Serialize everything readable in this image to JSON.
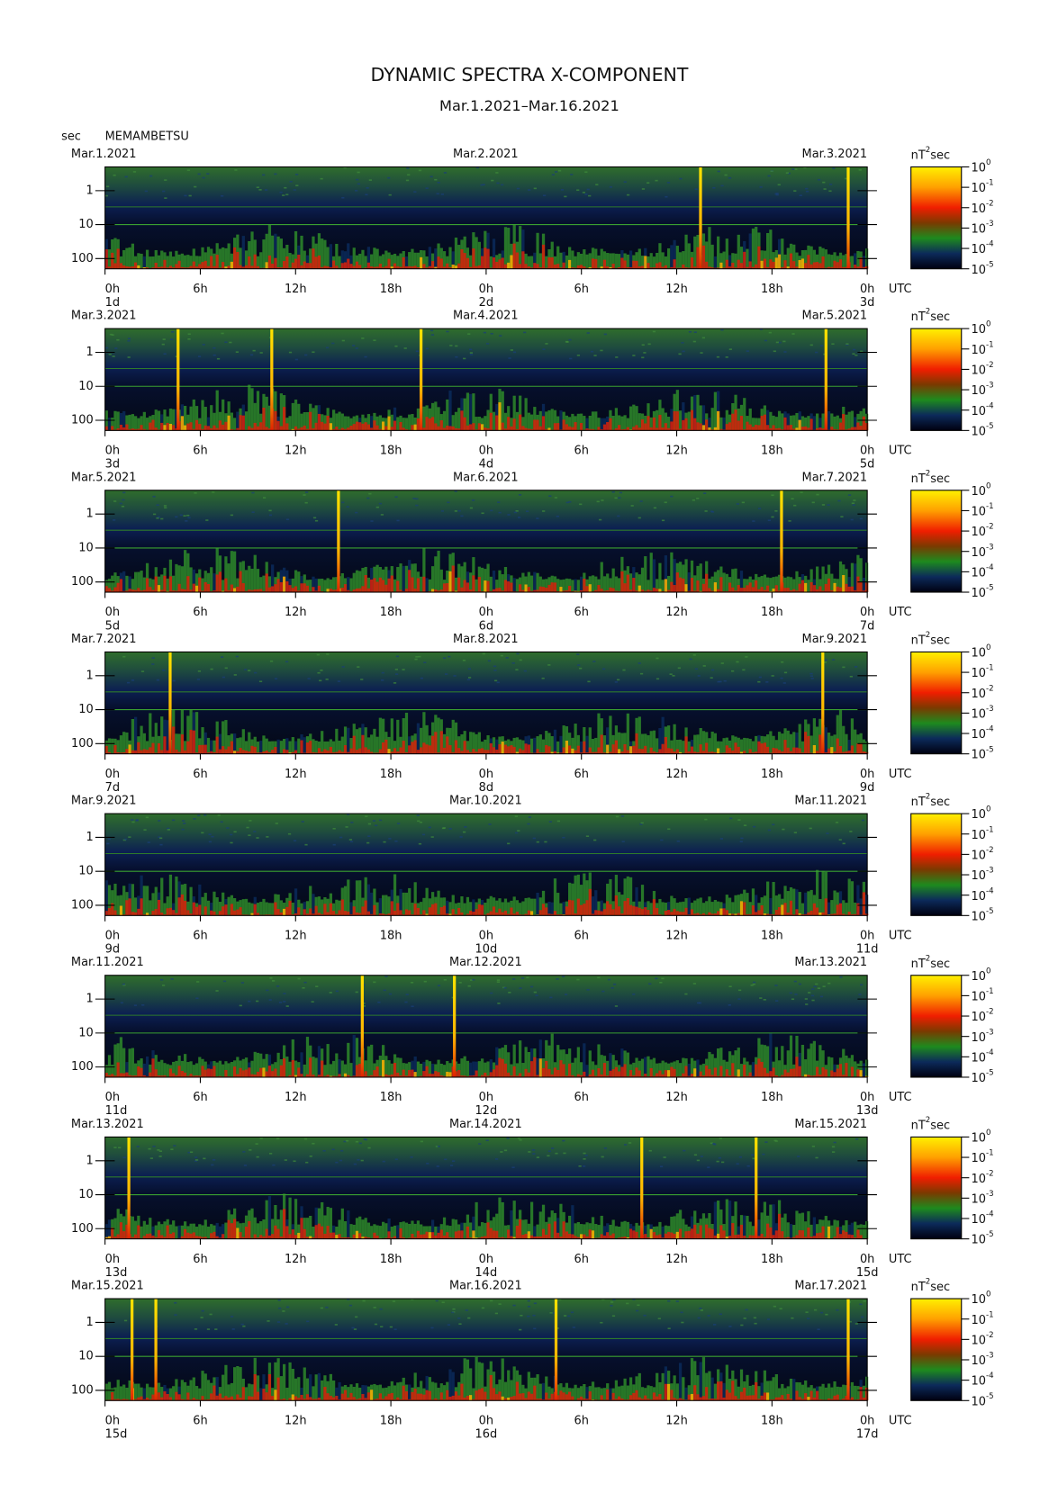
{
  "title": "DYNAMIC SPECTRA X-COMPONENT",
  "subtitle": "Mar.1.2021–Mar.16.2021",
  "y_unit": "sec",
  "station": "MEMAMBETSU",
  "time_zone": "UTC",
  "colorbar_unit": {
    "base": "nT",
    "exponent": "2",
    "suffix": "sec"
  },
  "colorbar_ticks": [
    {
      "base": "10",
      "exponent": "0"
    },
    {
      "base": "10",
      "exponent": "-1"
    },
    {
      "base": "10",
      "exponent": "-2"
    },
    {
      "base": "10",
      "exponent": "-3"
    },
    {
      "base": "10",
      "exponent": "-4"
    },
    {
      "base": "10",
      "exponent": "-5"
    }
  ],
  "chart_data": [
    {
      "type": "spectrogram",
      "dates": [
        "Mar.1.2021",
        "Mar.2.2021",
        "Mar.3.2021"
      ],
      "days": [
        {
          "value": 0,
          "label": "1d"
        },
        {
          "value": 24,
          "label": "2d"
        },
        {
          "value": 48,
          "label": "3d"
        }
      ],
      "events": [
        37.5,
        46.8
      ]
    },
    {
      "type": "spectrogram",
      "dates": [
        "Mar.3.2021",
        "Mar.4.2021",
        "Mar.5.2021"
      ],
      "days": [
        {
          "value": 0,
          "label": "3d"
        },
        {
          "value": 24,
          "label": "4d"
        },
        {
          "value": 48,
          "label": "5d"
        }
      ],
      "events": [
        4.6,
        10.5,
        19.9,
        45.4
      ]
    },
    {
      "type": "spectrogram",
      "dates": [
        "Mar.5.2021",
        "Mar.6.2021",
        "Mar.7.2021"
      ],
      "days": [
        {
          "value": 0,
          "label": "5d"
        },
        {
          "value": 24,
          "label": "6d"
        },
        {
          "value": 48,
          "label": "7d"
        }
      ],
      "events": [
        14.7,
        42.6
      ]
    },
    {
      "type": "spectrogram",
      "dates": [
        "Mar.7.2021",
        "Mar.8.2021",
        "Mar.9.2021"
      ],
      "days": [
        {
          "value": 0,
          "label": "7d"
        },
        {
          "value": 24,
          "label": "8d"
        },
        {
          "value": 48,
          "label": "9d"
        }
      ],
      "events": [
        4.1,
        45.2
      ]
    },
    {
      "type": "spectrogram",
      "dates": [
        "Mar.9.2021",
        "Mar.10.2021",
        "Mar.11.2021"
      ],
      "days": [
        {
          "value": 0,
          "label": "9d"
        },
        {
          "value": 24,
          "label": "10d"
        },
        {
          "value": 48,
          "label": "11d"
        }
      ],
      "events": []
    },
    {
      "type": "spectrogram",
      "dates": [
        "Mar.11.2021",
        "Mar.12.2021",
        "Mar.13.2021"
      ],
      "days": [
        {
          "value": 0,
          "label": "11d"
        },
        {
          "value": 24,
          "label": "12d"
        },
        {
          "value": 48,
          "label": "13d"
        }
      ],
      "events": [
        16.2,
        22.0
      ]
    },
    {
      "type": "spectrogram",
      "dates": [
        "Mar.13.2021",
        "Mar.14.2021",
        "Mar.15.2021"
      ],
      "days": [
        {
          "value": 0,
          "label": "13d"
        },
        {
          "value": 24,
          "label": "14d"
        },
        {
          "value": 48,
          "label": "15d"
        }
      ],
      "events": [
        1.5,
        33.8,
        41.0
      ]
    },
    {
      "type": "spectrogram",
      "dates": [
        "Mar.15.2021",
        "Mar.16.2021",
        "Mar.17.2021"
      ],
      "days": [
        {
          "value": 0,
          "label": "15d"
        },
        {
          "value": 24,
          "label": "16d"
        },
        {
          "value": 48,
          "label": "17d"
        }
      ],
      "events": [
        1.7,
        3.2,
        28.4,
        46.8
      ]
    }
  ],
  "xlim": [
    0,
    48
  ],
  "xticks": [
    {
      "value": 0,
      "label": "0h"
    },
    {
      "value": 6,
      "label": "6h"
    },
    {
      "value": 12,
      "label": "12h"
    },
    {
      "value": 18,
      "label": "18h"
    },
    {
      "value": 24,
      "label": "0h"
    },
    {
      "value": 30,
      "label": "6h"
    },
    {
      "value": 36,
      "label": "12h"
    },
    {
      "value": 42,
      "label": "18h"
    },
    {
      "value": 48,
      "label": "0h"
    }
  ],
  "ylim": [
    0.2,
    200
  ],
  "yticks": [
    1,
    10,
    100
  ],
  "y_log": true,
  "y_inverted": true
}
